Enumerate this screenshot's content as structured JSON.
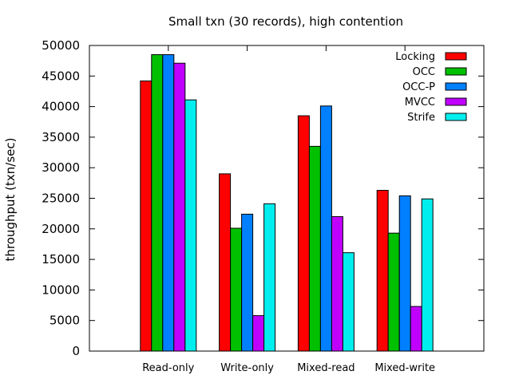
{
  "chart_data": {
    "type": "bar",
    "title": "Small txn (30 records), high contention",
    "xlabel": "",
    "ylabel": "throughput (txn/sec)",
    "ylim": [
      0,
      50000
    ],
    "yticks": [
      0,
      5000,
      10000,
      15000,
      20000,
      25000,
      30000,
      35000,
      40000,
      45000,
      50000
    ],
    "categories": [
      "Read-only",
      "Write-only",
      "Mixed-read",
      "Mixed-write"
    ],
    "series": [
      {
        "name": "Locking",
        "color": "#ff0000",
        "values": [
          44200,
          29000,
          38500,
          26300
        ]
      },
      {
        "name": "OCC",
        "color": "#00c000",
        "values": [
          48500,
          20100,
          33500,
          19300
        ]
      },
      {
        "name": "OCC-P",
        "color": "#0080ff",
        "values": [
          48500,
          22400,
          40100,
          25400
        ]
      },
      {
        "name": "MVCC",
        "color": "#c000ff",
        "values": [
          47100,
          5800,
          22000,
          7300
        ]
      },
      {
        "name": "Strife",
        "color": "#00eeee",
        "values": [
          41100,
          24100,
          16100,
          24900
        ]
      }
    ],
    "legend_position": "top-right",
    "grid": false
  }
}
